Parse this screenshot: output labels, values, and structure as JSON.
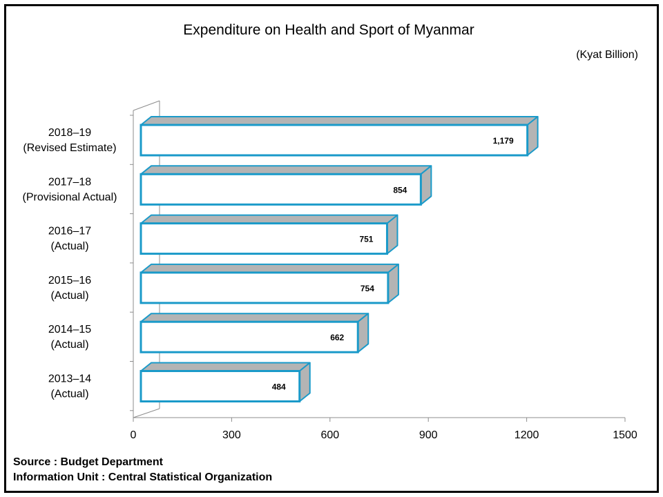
{
  "chart_data": {
    "type": "bar",
    "orientation": "horizontal",
    "title": "Expenditure on Health  and Sport of Myanmar",
    "unit_label": "(Kyat Billion)",
    "categories": [
      [
        "2018–19",
        "(Revised Estimate)"
      ],
      [
        "2017–18",
        "(Provisional Actual)"
      ],
      [
        "2016–17",
        "(Actual)"
      ],
      [
        "2015–16",
        "(Actual)"
      ],
      [
        "2014–15",
        "(Actual)"
      ],
      [
        "2013–14",
        "(Actual)"
      ]
    ],
    "values": [
      1179,
      854,
      751,
      754,
      662,
      484
    ],
    "value_labels": [
      "1,179",
      "854",
      "751",
      "754",
      "662",
      "484"
    ],
    "xlim": [
      0,
      1500
    ],
    "xticks": [
      0,
      300,
      600,
      900,
      1200,
      1500
    ],
    "grid": false,
    "legend": "none",
    "colors": {
      "bar_fill": "#ffffff",
      "bar_border": "#1a9ac9",
      "bar_depth": "#b4b4b4",
      "axis": "#8c8c8c"
    }
  },
  "footer": {
    "source": "Source : Budget Department",
    "info": "Information Unit : Central Statistical Organization"
  }
}
